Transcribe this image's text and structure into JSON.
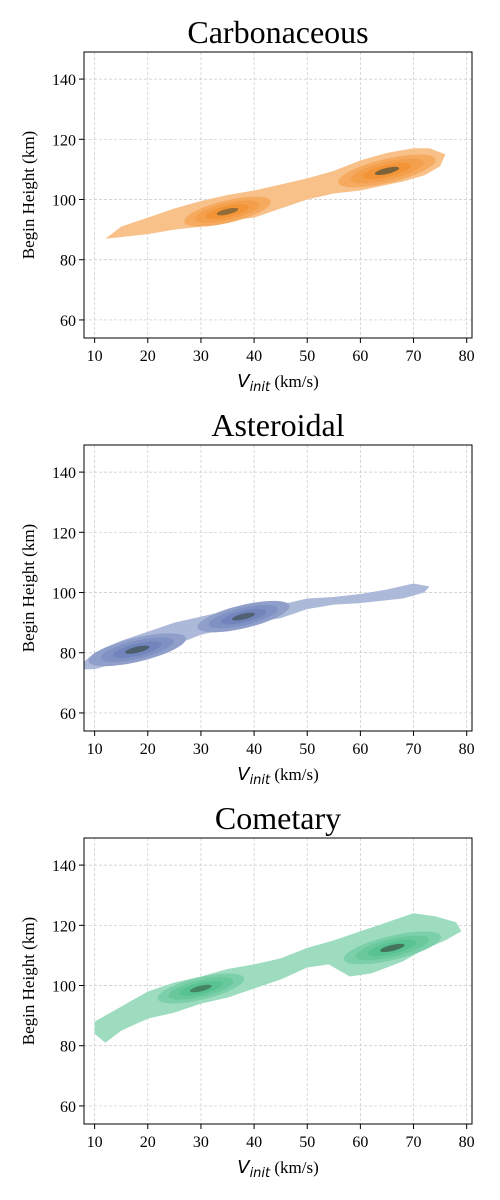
{
  "chart_data": [
    {
      "type": "kde-contour",
      "title": "Carbonaceous",
      "xlabel": "V_init (km/s)",
      "xlabel_main": "V",
      "xlabel_sub": "init",
      "xlabel_unit": " (km/s)",
      "ylabel": "Begin Height (km)",
      "xlim": [
        8,
        81
      ],
      "ylim": [
        54,
        149
      ],
      "xticks": [
        "10",
        "20",
        "30",
        "40",
        "50",
        "60",
        "70",
        "80"
      ],
      "yticks": [
        "60",
        "80",
        "100",
        "120",
        "140"
      ],
      "grid": true,
      "color": "#f28e2b",
      "density_peaks": [
        {
          "x": 35,
          "y": 96,
          "level": 0.8
        },
        {
          "x": 65,
          "y": 109.5,
          "level": 1.0
        }
      ],
      "outline": [
        [
          12,
          87
        ],
        [
          15,
          91
        ],
        [
          20,
          94
        ],
        [
          25,
          97
        ],
        [
          30,
          99.5
        ],
        [
          35,
          101.5
        ],
        [
          40,
          103
        ],
        [
          45,
          105
        ],
        [
          50,
          107
        ],
        [
          55,
          109.5
        ],
        [
          60,
          113
        ],
        [
          65,
          115.5
        ],
        [
          70,
          117
        ],
        [
          73,
          117
        ],
        [
          76,
          115
        ],
        [
          75,
          111
        ],
        [
          72,
          108
        ],
        [
          68,
          106
        ],
        [
          60,
          103
        ],
        [
          55,
          102
        ],
        [
          50,
          100
        ],
        [
          45,
          97
        ],
        [
          40,
          94
        ],
        [
          35,
          93
        ],
        [
          30,
          91
        ],
        [
          25,
          90
        ],
        [
          20,
          88.5
        ],
        [
          15,
          87.5
        ],
        [
          12,
          87
        ]
      ]
    },
    {
      "type": "kde-contour",
      "title": "Asteroidal",
      "xlabel": "V_init (km/s)",
      "xlabel_main": "V",
      "xlabel_sub": "init",
      "xlabel_unit": " (km/s)",
      "ylabel": "Begin Height (km)",
      "xlim": [
        8,
        81
      ],
      "ylim": [
        54,
        149
      ],
      "xticks": [
        "10",
        "20",
        "30",
        "40",
        "50",
        "60",
        "70",
        "80"
      ],
      "yticks": [
        "60",
        "80",
        "100",
        "120",
        "140"
      ],
      "grid": true,
      "color": "#6a7fb8",
      "density_peaks": [
        {
          "x": 18,
          "y": 81,
          "level": 1.0
        },
        {
          "x": 38,
          "y": 92,
          "level": 0.9
        }
      ],
      "outline": [
        [
          8,
          77
        ],
        [
          10,
          80
        ],
        [
          15,
          84
        ],
        [
          20,
          87
        ],
        [
          25,
          90
        ],
        [
          30,
          92
        ],
        [
          35,
          94
        ],
        [
          40,
          95.5
        ],
        [
          45,
          96
        ],
        [
          50,
          98
        ],
        [
          55,
          98.5
        ],
        [
          60,
          99.5
        ],
        [
          65,
          101
        ],
        [
          70,
          103
        ],
        [
          73,
          102
        ],
        [
          72,
          100
        ],
        [
          68,
          98
        ],
        [
          60,
          96.5
        ],
        [
          55,
          96
        ],
        [
          50,
          94.5
        ],
        [
          45,
          91.5
        ],
        [
          40,
          90
        ],
        [
          35,
          88
        ],
        [
          30,
          86
        ],
        [
          25,
          82.5
        ],
        [
          20,
          79
        ],
        [
          15,
          77
        ],
        [
          10,
          74.5
        ],
        [
          8,
          74.5
        ],
        [
          8,
          77
        ]
      ]
    },
    {
      "type": "kde-contour",
      "title": "Cometary",
      "xlabel": "V_init (km/s)",
      "xlabel_main": "V",
      "xlabel_sub": "init",
      "xlabel_unit": " (km/s)",
      "ylabel": "Begin Height (km)",
      "xlim": [
        8,
        81
      ],
      "ylim": [
        54,
        149
      ],
      "xticks": [
        "10",
        "20",
        "30",
        "40",
        "50",
        "60",
        "70",
        "80"
      ],
      "yticks": [
        "60",
        "80",
        "100",
        "120",
        "140"
      ],
      "grid": true,
      "color": "#4fbf8c",
      "density_peaks": [
        {
          "x": 30,
          "y": 99,
          "level": 0.8
        },
        {
          "x": 66,
          "y": 112.5,
          "level": 1.0
        }
      ],
      "outline": [
        [
          10,
          88
        ],
        [
          15,
          93
        ],
        [
          20,
          98
        ],
        [
          25,
          101
        ],
        [
          30,
          103
        ],
        [
          35,
          105.5
        ],
        [
          40,
          107
        ],
        [
          45,
          109
        ],
        [
          50,
          112.5
        ],
        [
          55,
          115
        ],
        [
          60,
          118
        ],
        [
          65,
          121
        ],
        [
          70,
          124
        ],
        [
          74,
          123
        ],
        [
          78,
          121
        ],
        [
          79,
          118
        ],
        [
          76,
          115
        ],
        [
          72,
          112
        ],
        [
          68,
          108
        ],
        [
          62,
          104
        ],
        [
          58,
          103
        ],
        [
          54,
          107
        ],
        [
          50,
          106
        ],
        [
          45,
          102
        ],
        [
          40,
          99
        ],
        [
          35,
          96
        ],
        [
          30,
          94
        ],
        [
          25,
          91
        ],
        [
          20,
          89
        ],
        [
          15,
          85
        ],
        [
          12,
          81
        ],
        [
          10,
          84
        ],
        [
          10,
          88
        ]
      ]
    }
  ]
}
